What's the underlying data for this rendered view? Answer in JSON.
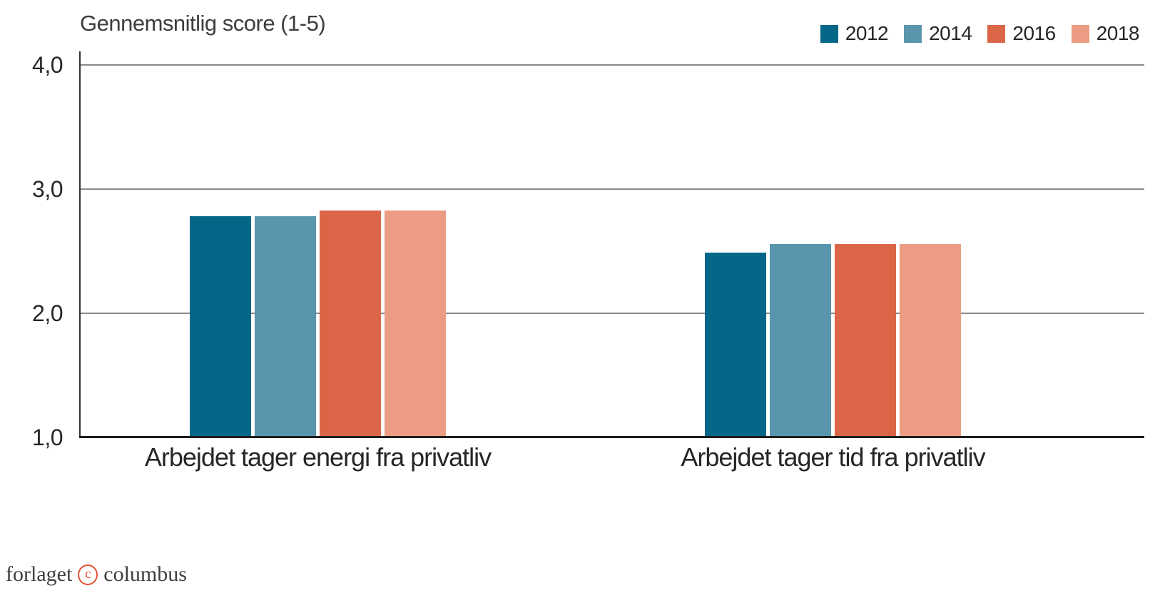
{
  "chart_data": {
    "type": "bar",
    "title": "Gennemsnitlig score (1-5)",
    "categories": [
      "Arbejdet tager energi fra privatliv",
      "Arbejdet tager tid fra privatliv"
    ],
    "series": [
      {
        "name": "2012",
        "color": "#046787",
        "values": [
          2.78,
          2.49
        ]
      },
      {
        "name": "2014",
        "color": "#5995ad",
        "values": [
          2.78,
          2.56
        ]
      },
      {
        "name": "2016",
        "color": "#db6647",
        "values": [
          2.83,
          2.56
        ]
      },
      {
        "name": "2018",
        "color": "#ec9c82",
        "values": [
          2.83,
          2.56
        ]
      }
    ],
    "ylim": [
      1.0,
      4.0
    ],
    "yticks": [
      {
        "value": 4.0,
        "label": "4,0"
      },
      {
        "value": 3.0,
        "label": "3,0"
      },
      {
        "value": 2.0,
        "label": "2,0"
      },
      {
        "value": 1.0,
        "label": "1,0"
      }
    ],
    "grid": true,
    "legend_position": "top-right"
  },
  "footer": {
    "brand_word_left": "forlaget",
    "copyright_symbol": "c",
    "brand_word_right": "columbus"
  }
}
